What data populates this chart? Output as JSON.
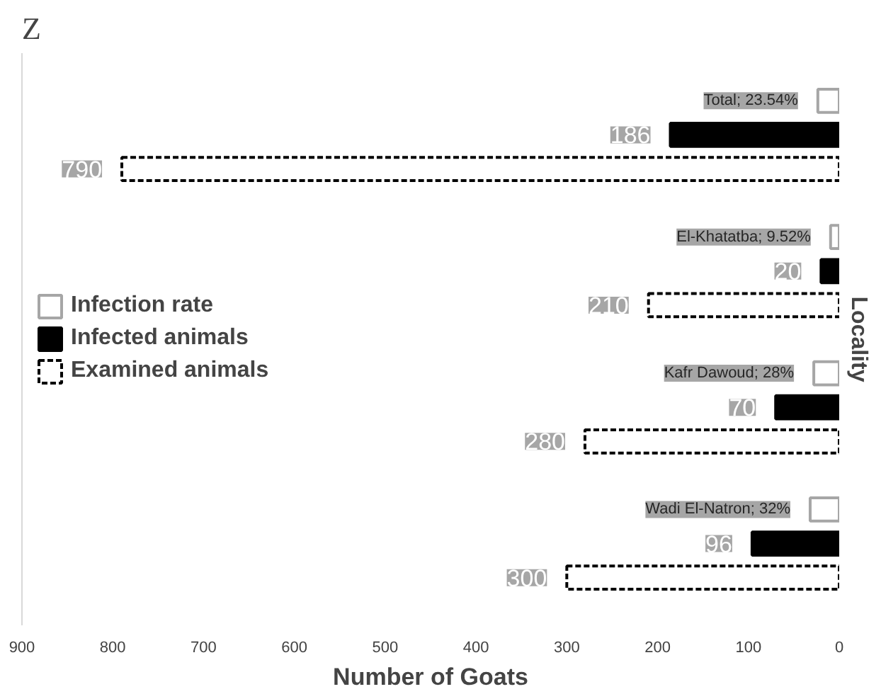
{
  "chart_data": {
    "type": "bar",
    "orientation": "horizontal",
    "title": "Z",
    "xlabel": "Number of Goats",
    "y2label": "Locality",
    "categories": [
      null,
      null,
      null,
      null
    ],
    "series": [
      {
        "name": "Infection rate",
        "color": "#ffffff",
        "values": [
          23.54,
          9.52,
          28,
          32
        ],
        "value_labels": [
          "Total; 23.54%",
          "El-Khatatba; 9.52%",
          "Kafr Dawoud; 28%",
          "Wadi El-Natron; 32%"
        ]
      },
      {
        "name": "Infected animals",
        "color": "#000000",
        "values": [
          186,
          20,
          70,
          96
        ],
        "data_labels": true
      },
      {
        "name": "Examined animals",
        "color": "#ffffff",
        "values": [
          790,
          210,
          280,
          300
        ],
        "data_labels": true,
        "line_style": "dashed"
      }
    ],
    "xlim": [
      900,
      0
    ],
    "xticks": [
      900,
      800,
      700,
      600,
      500,
      400,
      300,
      200,
      100,
      0
    ],
    "grid": false,
    "legend": "left",
    "tick_labels": "x"
  }
}
